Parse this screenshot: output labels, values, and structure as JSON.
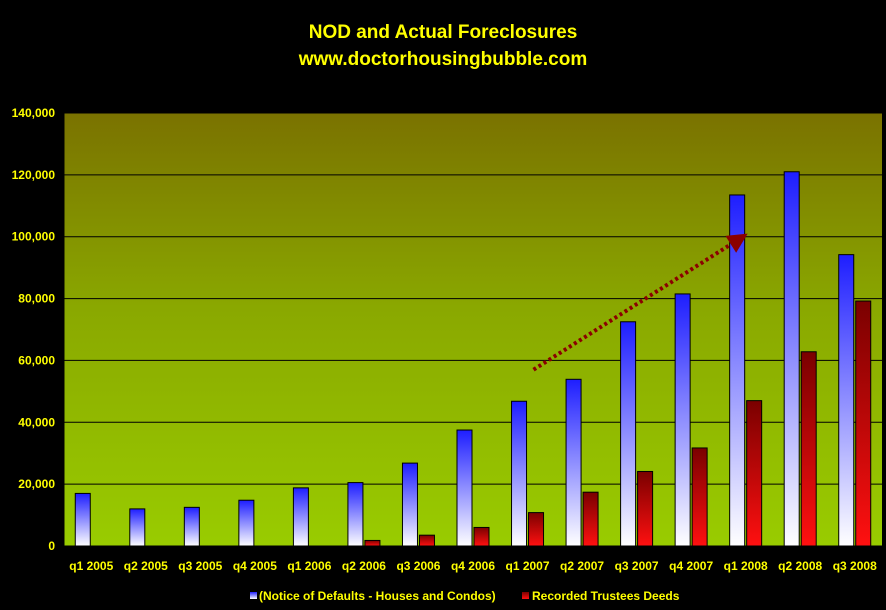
{
  "chart_data": {
    "type": "bar",
    "title": "NOD and Actual Foreclosures",
    "subtitle": "www.doctorhousingbubble.com",
    "categories": [
      "q1 2005",
      "q2 2005",
      "q3 2005",
      "q4 2005",
      "q1 2006",
      "q2 2006",
      "q3 2006",
      "q4 2006",
      "q1 2007",
      "q2 2007",
      "q3 2007",
      "q4 2007",
      "q1 2008",
      "q2 2008",
      "q3 2008"
    ],
    "series": [
      {
        "name": "(Notice of Defaults - Houses and Condos)",
        "color": "#2020ff",
        "values": [
          17000,
          12000,
          12500,
          14800,
          18800,
          20500,
          26800,
          37500,
          46800,
          53900,
          72500,
          81500,
          113500,
          121000,
          94200
        ]
      },
      {
        "name": "Recorded Trustees Deeds",
        "color": "#cc0000",
        "values": [
          0,
          0,
          0,
          0,
          0,
          1800,
          3500,
          6000,
          10800,
          17400,
          24100,
          31700,
          47000,
          62800,
          79200
        ]
      }
    ],
    "ylim": [
      0,
      140000
    ],
    "yticks": [
      0,
      20000,
      40000,
      60000,
      80000,
      100000,
      120000,
      140000
    ],
    "ytick_labels": [
      "0",
      "20,000",
      "40,000",
      "60,000",
      "80,000",
      "100,000",
      "120,000",
      "140,000"
    ],
    "grid": true,
    "legend_position": "bottom",
    "annotation": {
      "type": "trend-arrow",
      "from": {
        "category": "q1 2007",
        "y": 57000
      },
      "to": {
        "category": "q1 2008",
        "y": 101000
      },
      "color": "#8b0000"
    }
  }
}
